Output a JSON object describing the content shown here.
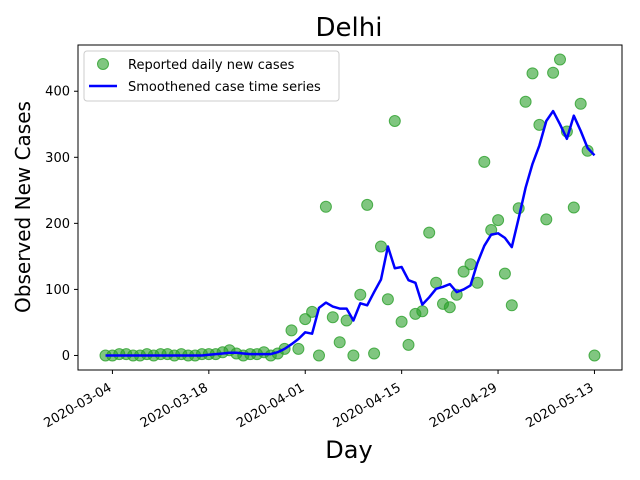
{
  "chart_data": {
    "type": "scatter",
    "title": "Delhi",
    "xlabel": "Day",
    "ylabel": "Observed New Cases",
    "x_tick_labels": [
      "2020-03-04",
      "2020-03-18",
      "2020-04-01",
      "2020-04-15",
      "2020-04-29",
      "2020-05-13"
    ],
    "y_ticks": [
      0,
      100,
      200,
      300,
      400
    ],
    "xlim": [
      "2020-02-28",
      "2020-05-17"
    ],
    "ylim": [
      -22,
      470
    ],
    "grid": false,
    "legend_placement": "top-left",
    "series": [
      {
        "name": "Reported daily new cases",
        "kind": "markers",
        "color": "#2ca02c",
        "x": [
          "2020-03-03",
          "2020-03-04",
          "2020-03-05",
          "2020-03-06",
          "2020-03-07",
          "2020-03-08",
          "2020-03-09",
          "2020-03-10",
          "2020-03-11",
          "2020-03-12",
          "2020-03-13",
          "2020-03-14",
          "2020-03-15",
          "2020-03-16",
          "2020-03-17",
          "2020-03-18",
          "2020-03-19",
          "2020-03-20",
          "2020-03-21",
          "2020-03-22",
          "2020-03-23",
          "2020-03-24",
          "2020-03-25",
          "2020-03-26",
          "2020-03-27",
          "2020-03-28",
          "2020-03-29",
          "2020-03-30",
          "2020-03-31",
          "2020-04-01",
          "2020-04-02",
          "2020-04-03",
          "2020-04-04",
          "2020-04-05",
          "2020-04-06",
          "2020-04-07",
          "2020-04-08",
          "2020-04-09",
          "2020-04-10",
          "2020-04-11",
          "2020-04-12",
          "2020-04-13",
          "2020-04-14",
          "2020-04-15",
          "2020-04-16",
          "2020-04-17",
          "2020-04-18",
          "2020-04-19",
          "2020-04-20",
          "2020-04-21",
          "2020-04-22",
          "2020-04-23",
          "2020-04-24",
          "2020-04-25",
          "2020-04-26",
          "2020-04-27",
          "2020-04-28",
          "2020-04-29",
          "2020-04-30",
          "2020-05-01",
          "2020-05-02",
          "2020-05-03",
          "2020-05-04",
          "2020-05-05",
          "2020-05-06",
          "2020-05-07",
          "2020-05-08",
          "2020-05-09",
          "2020-05-10",
          "2020-05-11",
          "2020-05-12",
          "2020-05-13"
        ],
        "values": [
          0,
          0,
          2,
          2,
          0,
          0,
          2,
          0,
          2,
          2,
          0,
          2,
          0,
          0,
          2,
          2,
          2,
          5,
          8,
          3,
          0,
          2,
          2,
          5,
          0,
          3,
          10,
          38,
          10,
          55,
          66,
          0,
          225,
          58,
          20,
          53,
          0,
          92,
          228,
          3,
          165,
          85,
          355,
          51,
          16,
          63,
          67,
          186,
          110,
          78,
          73,
          92,
          127,
          138,
          110,
          293,
          190,
          205,
          124,
          76,
          223,
          384,
          427,
          349,
          206,
          428,
          448,
          339,
          224,
          381,
          310,
          0
        ]
      },
      {
        "name": "Smoothened case time series",
        "kind": "line",
        "color": "#0000ff",
        "x": [
          "2020-03-03",
          "2020-03-04",
          "2020-03-05",
          "2020-03-06",
          "2020-03-07",
          "2020-03-08",
          "2020-03-09",
          "2020-03-10",
          "2020-03-11",
          "2020-03-12",
          "2020-03-13",
          "2020-03-14",
          "2020-03-15",
          "2020-03-16",
          "2020-03-17",
          "2020-03-18",
          "2020-03-19",
          "2020-03-20",
          "2020-03-21",
          "2020-03-22",
          "2020-03-23",
          "2020-03-24",
          "2020-03-25",
          "2020-03-26",
          "2020-03-27",
          "2020-03-28",
          "2020-03-29",
          "2020-03-30",
          "2020-03-31",
          "2020-04-01",
          "2020-04-02",
          "2020-04-03",
          "2020-04-04",
          "2020-04-05",
          "2020-04-06",
          "2020-04-07",
          "2020-04-08",
          "2020-04-09",
          "2020-04-10",
          "2020-04-11",
          "2020-04-12",
          "2020-04-13",
          "2020-04-14",
          "2020-04-15",
          "2020-04-16",
          "2020-04-17",
          "2020-04-18",
          "2020-04-19",
          "2020-04-20",
          "2020-04-21",
          "2020-04-22",
          "2020-04-23",
          "2020-04-24",
          "2020-04-25",
          "2020-04-26",
          "2020-04-27",
          "2020-04-28",
          "2020-04-29",
          "2020-04-30",
          "2020-05-01",
          "2020-05-02",
          "2020-05-03",
          "2020-05-04",
          "2020-05-05",
          "2020-05-06",
          "2020-05-07",
          "2020-05-08",
          "2020-05-09",
          "2020-05-10",
          "2020-05-11",
          "2020-05-12",
          "2020-05-13"
        ],
        "values": [
          0,
          0,
          0,
          0,
          0,
          0,
          0,
          0,
          0,
          0,
          0,
          0,
          0,
          0,
          0,
          1,
          2,
          3,
          4,
          4,
          3,
          2,
          2,
          2,
          2,
          5,
          10,
          17,
          25,
          35,
          33,
          72,
          80,
          74,
          71,
          71,
          53,
          79,
          76,
          96,
          115,
          165,
          132,
          134,
          114,
          110,
          77,
          88,
          101,
          104,
          108,
          96,
          100,
          106,
          140,
          166,
          183,
          185,
          178,
          164,
          208,
          254,
          290,
          318,
          355,
          370,
          350,
          328,
          363,
          340,
          314,
          303
        ]
      }
    ]
  }
}
